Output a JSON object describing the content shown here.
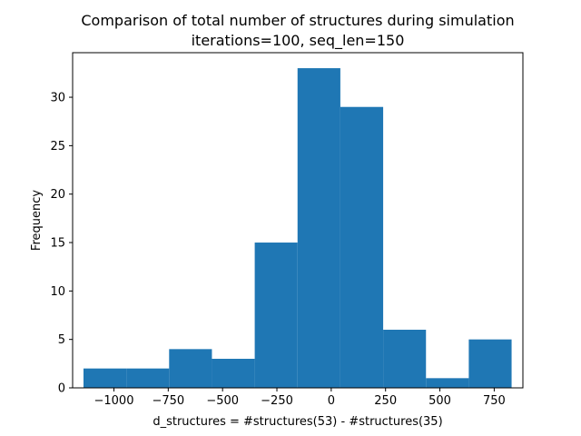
{
  "chart_data": {
    "type": "histogram",
    "title": "Comparison of total number of structures during simulation",
    "subtitle": "iterations=100, seq_len=150",
    "xlabel": "d_structures = #structures(53) - #structures(35)",
    "ylabel": "Frequency",
    "xlim": [
      -1190,
      882
    ],
    "ylim": [
      0,
      34.6
    ],
    "x_ticks": [
      {
        "value": -1000,
        "label": "−1000"
      },
      {
        "value": -750,
        "label": "−750"
      },
      {
        "value": -500,
        "label": "−500"
      },
      {
        "value": -250,
        "label": "−250"
      },
      {
        "value": 0,
        "label": "0"
      },
      {
        "value": 250,
        "label": "250"
      },
      {
        "value": 500,
        "label": "500"
      },
      {
        "value": 750,
        "label": "750"
      }
    ],
    "y_ticks": [
      {
        "value": 0,
        "label": "0"
      },
      {
        "value": 5,
        "label": "5"
      },
      {
        "value": 10,
        "label": "10"
      },
      {
        "value": 15,
        "label": "15"
      },
      {
        "value": 20,
        "label": "20"
      },
      {
        "value": 25,
        "label": "25"
      },
      {
        "value": 30,
        "label": "30"
      }
    ],
    "bins": [
      {
        "x0": -1140,
        "x1": -943,
        "count": 2
      },
      {
        "x0": -943,
        "x1": -746,
        "count": 2
      },
      {
        "x0": -746,
        "x1": -549,
        "count": 4
      },
      {
        "x0": -549,
        "x1": -352,
        "count": 3
      },
      {
        "x0": -352,
        "x1": -155,
        "count": 15
      },
      {
        "x0": -155,
        "x1": 42,
        "count": 33
      },
      {
        "x0": 42,
        "x1": 239,
        "count": 29
      },
      {
        "x0": 239,
        "x1": 436,
        "count": 6
      },
      {
        "x0": 436,
        "x1": 633,
        "count": 1
      },
      {
        "x0": 633,
        "x1": 830,
        "count": 5
      }
    ],
    "bar_color": "#1f77b4",
    "grid": false
  }
}
